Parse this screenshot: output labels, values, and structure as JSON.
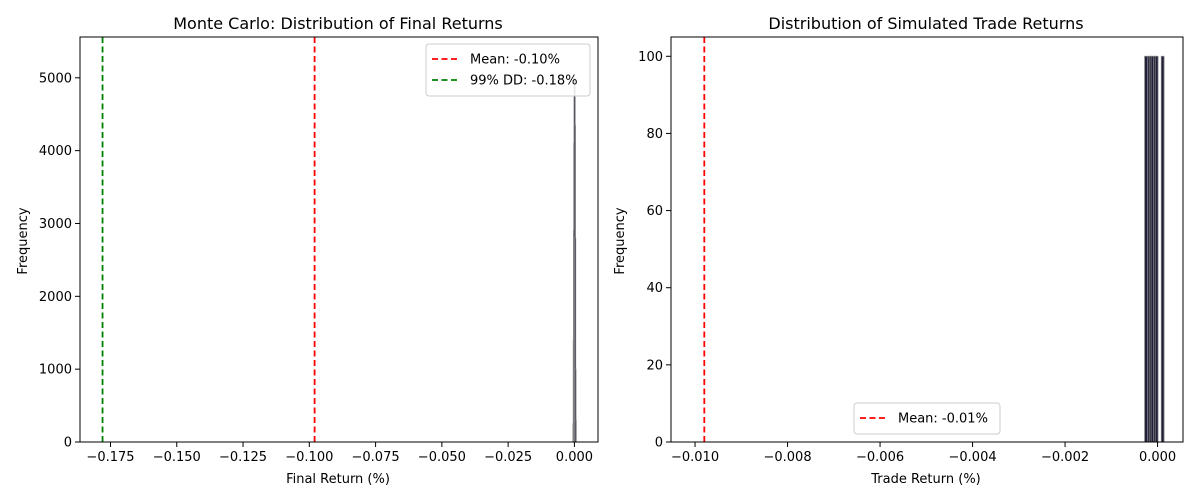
{
  "chart_data": [
    {
      "type": "histogram",
      "title": "Monte Carlo: Distribution of Final Returns",
      "xlabel": "Final Return (%)",
      "ylabel": "Frequency",
      "xlim": [
        -0.1865,
        0.0089
      ],
      "ylim": [
        0,
        5560
      ],
      "xticks": [
        -0.175,
        -0.15,
        -0.125,
        -0.1,
        -0.075,
        -0.05,
        -0.025,
        0.0
      ],
      "xtick_labels": [
        "−0.175",
        "−0.150",
        "−0.125",
        "−0.100",
        "−0.075",
        "−0.050",
        "−0.025",
        "0.000"
      ],
      "yticks": [
        0,
        1000,
        2000,
        3000,
        4000,
        5000
      ],
      "ytick_labels": [
        "0",
        "1000",
        "2000",
        "3000",
        "4000",
        "5000"
      ],
      "grid": false,
      "bar_color": "#1f1f3a",
      "bars": {
        "x": [
          -0.0005,
          -0.0004,
          -0.0003,
          -0.0002,
          -0.0001,
          0.0,
          0.0001,
          0.0002,
          0.0003
        ],
        "values": [
          250,
          1400,
          2900,
          4100,
          5000,
          4350,
          2800,
          1000,
          300
        ]
      },
      "reference_lines": [
        {
          "x": -0.098,
          "color": "#ff0000",
          "style": "dashed",
          "label": "Mean: -0.10%"
        },
        {
          "x": -0.178,
          "color": "#008000",
          "style": "dashed",
          "label": "99% DD: -0.18%"
        }
      ],
      "legend_position": "upper right"
    },
    {
      "type": "histogram",
      "title": "Distribution of Simulated Trade Returns",
      "xlabel": "Trade Return (%)",
      "ylabel": "Frequency",
      "xlim": [
        -0.01052,
        0.00055
      ],
      "ylim": [
        0,
        105
      ],
      "xticks": [
        -0.01,
        -0.008,
        -0.006,
        -0.004,
        -0.002,
        0.0
      ],
      "xtick_labels": [
        "−0.010",
        "−0.008",
        "−0.006",
        "−0.004",
        "−0.002",
        "0.000"
      ],
      "yticks": [
        0,
        20,
        40,
        60,
        80,
        100
      ],
      "ytick_labels": [
        "0",
        "20",
        "40",
        "60",
        "80",
        "100"
      ],
      "grid": false,
      "bar_color": "#1f1f3a",
      "bars": {
        "x": [
          -0.00025,
          -0.00019,
          -0.00015,
          -0.00011,
          -6e-05,
          -2e-05,
          0.00011
        ],
        "values": [
          100,
          100,
          100,
          100,
          100,
          100,
          100
        ]
      },
      "reference_lines": [
        {
          "x": -0.0098,
          "color": "#ff0000",
          "style": "dashed",
          "label": "Mean: -0.01%"
        }
      ],
      "legend_position": "lower center"
    }
  ]
}
